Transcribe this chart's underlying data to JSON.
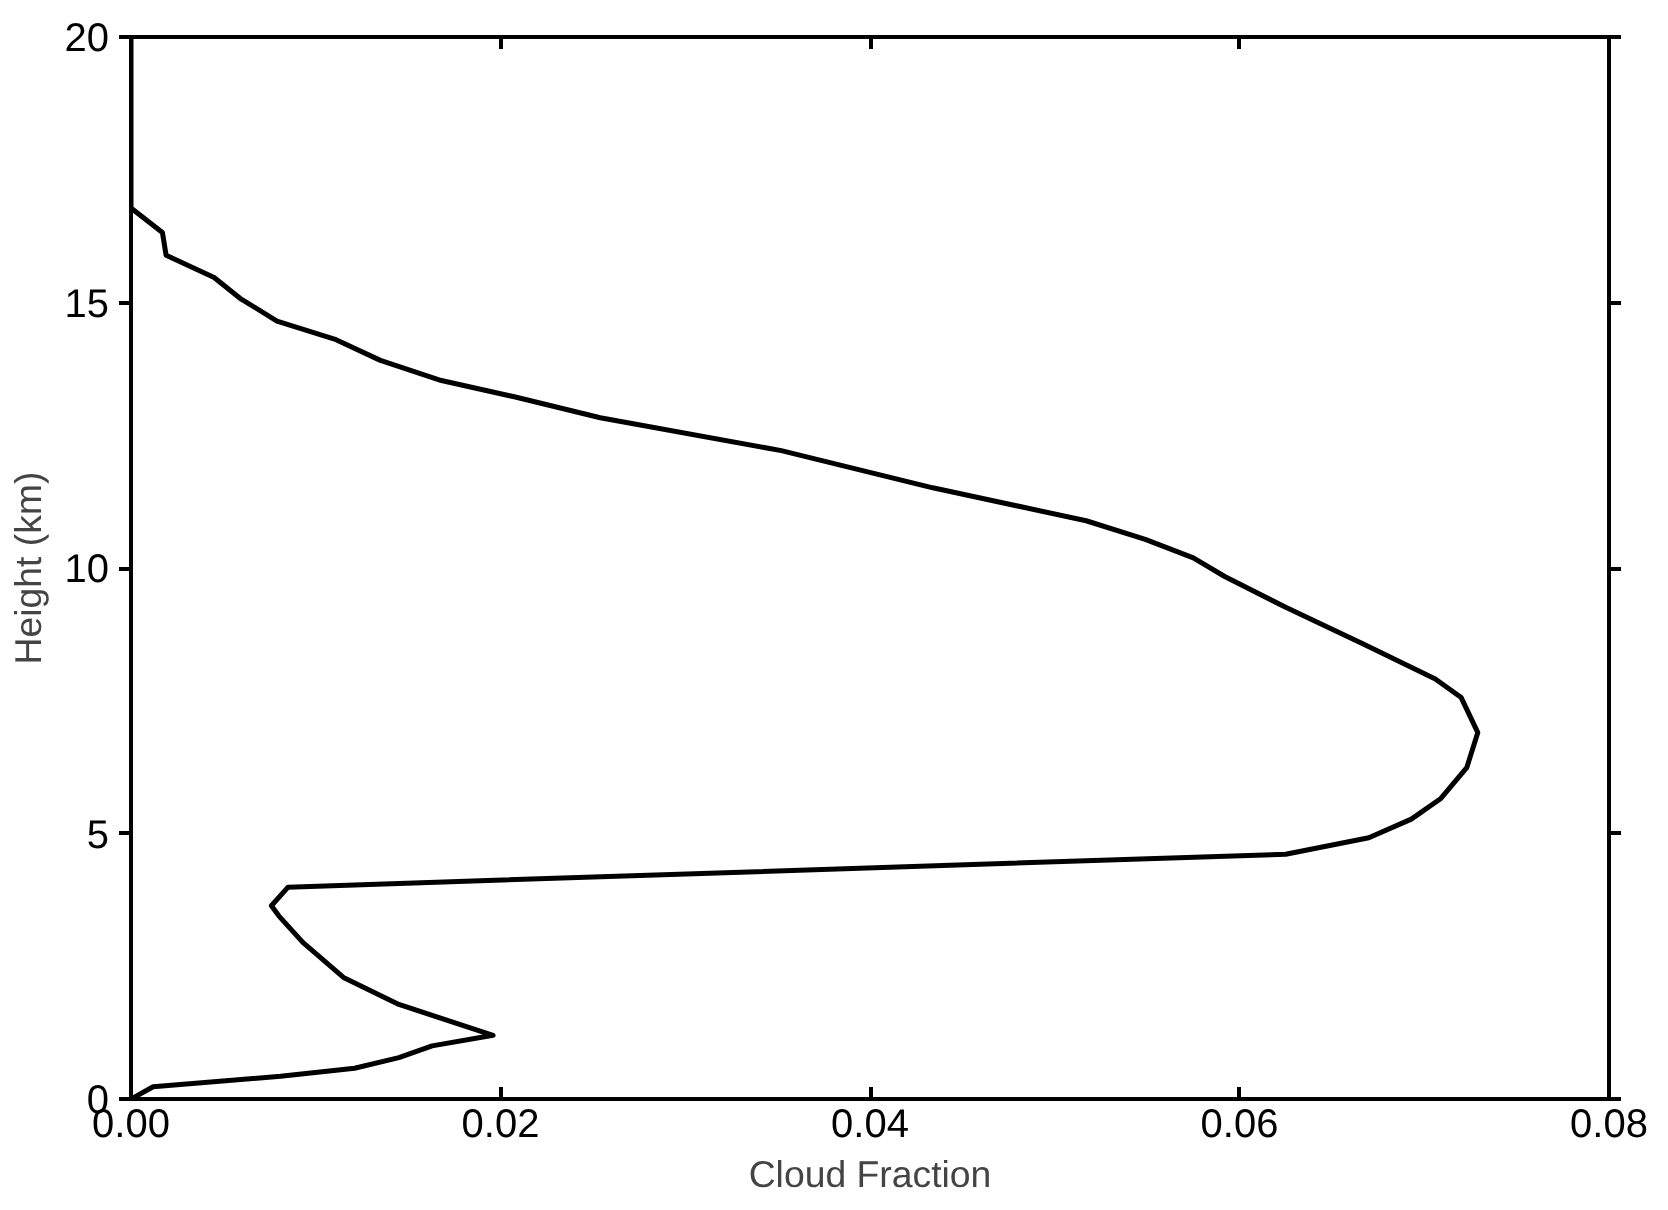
{
  "chart_data": {
    "type": "line",
    "xlabel": "Cloud Fraction",
    "ylabel": "Height (km)",
    "xlim": [
      0,
      0.08
    ],
    "ylim": [
      0,
      20
    ],
    "xticks": [
      {
        "value": 0,
        "label": "0.00"
      },
      {
        "value": 0.02,
        "label": "0.02"
      },
      {
        "value": 0.04,
        "label": "0.04"
      },
      {
        "value": 0.06,
        "label": "0.06"
      },
      {
        "value": 0.08,
        "label": "0.08"
      }
    ],
    "yticks": [
      0,
      5,
      10,
      15,
      20
    ],
    "grid": false,
    "marker": "none",
    "line_style": "solid",
    "series": [
      {
        "color": "#000000",
        "x": [
          0,
          0.0012,
          0.0081,
          0.0121,
          0.0145,
          0.0163,
          0.0196,
          0.0145,
          0.0115,
          0.0093,
          0.008,
          0.0076,
          0.0085,
          0.0625,
          0.067,
          0.0693,
          0.0709,
          0.0723,
          0.0729,
          0.072,
          0.0706,
          0.0667,
          0.0625,
          0.0592,
          0.0575,
          0.0549,
          0.0517,
          0.0434,
          0.0352,
          0.0254,
          0.0208,
          0.0168,
          0.0135,
          0.0111,
          0.0079,
          0.0059,
          0.0045,
          0.0019,
          0.0017,
          0,
          0
        ],
        "values": [
          0,
          0.23,
          0.43,
          0.58,
          0.78,
          1.0,
          1.2,
          1.78,
          2.29,
          2.95,
          3.45,
          3.64,
          3.99,
          4.61,
          4.92,
          5.27,
          5.66,
          6.24,
          6.9,
          7.56,
          7.91,
          8.57,
          9.26,
          9.84,
          10.19,
          10.54,
          10.89,
          11.51,
          12.21,
          12.83,
          13.22,
          13.53,
          13.91,
          14.3,
          14.65,
          15.08,
          15.47,
          15.89,
          16.32,
          16.78,
          20
        ]
      }
    ]
  }
}
